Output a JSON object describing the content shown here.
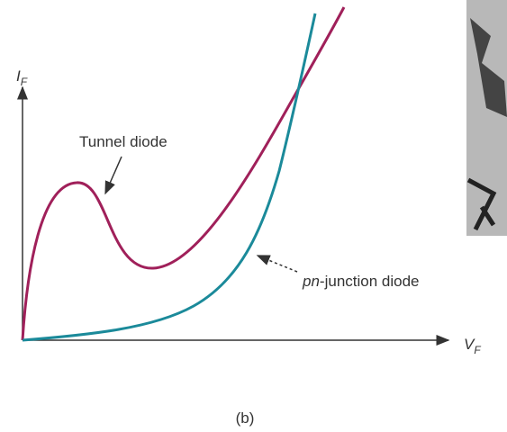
{
  "axes": {
    "y_label": {
      "symbol": "I",
      "subscript": "F"
    },
    "x_label": {
      "symbol": "V",
      "subscript": "F"
    }
  },
  "curves": [
    {
      "label": "Tunnel diode"
    },
    {
      "label_italic": "pn",
      "label": "-junction diode"
    }
  ],
  "caption": "(b)"
}
